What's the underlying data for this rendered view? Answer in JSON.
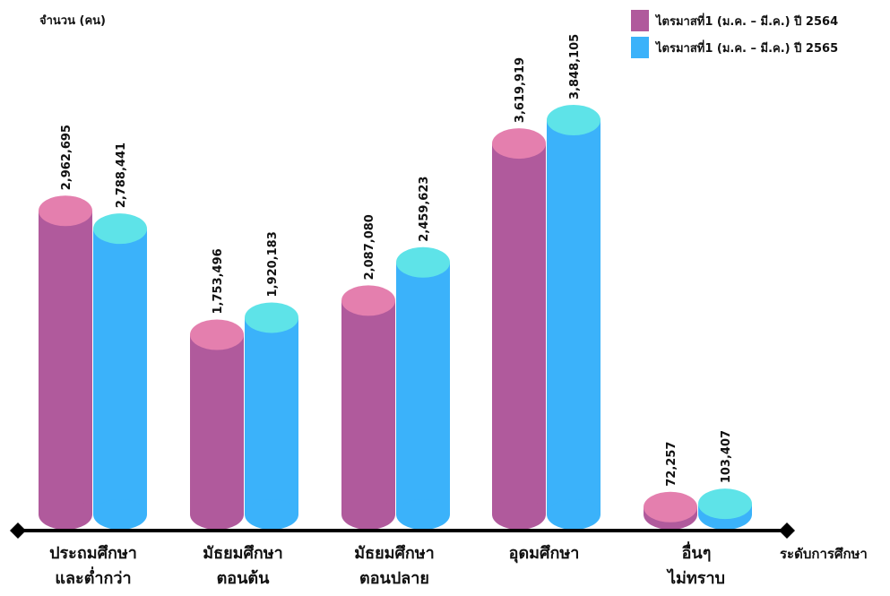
{
  "chart_data": {
    "type": "bar",
    "ylabel": "จำนวน (คน)",
    "xlabel": "ระดับการศึกษา",
    "categories": [
      [
        "ประถมศึกษา",
        "และต่ำกว่า"
      ],
      [
        "มัธยมศึกษา",
        "ตอนต้น"
      ],
      [
        "มัธยมศึกษา",
        "ตอนปลาย"
      ],
      [
        "อุดมศึกษา"
      ],
      [
        "อื่นๆ",
        "ไม่ทราบ"
      ]
    ],
    "series": [
      {
        "name": "ไตรมาสที่1 (ม.ค. – มี.ค.) ปี 2564",
        "color": "#B05A9C",
        "top_color": "#E47FAE",
        "values": [
          2962695,
          1753496,
          2087080,
          3619919,
          72257
        ],
        "value_labels": [
          "2,962,695",
          "1,753,496",
          "2,087,080",
          "3,619,919",
          "72,257"
        ]
      },
      {
        "name": "ไตรมาสที่1 (ม.ค. – มี.ค.) ปี 2565",
        "color": "#3BB2FA",
        "top_color": "#5EE3E8",
        "values": [
          2788441,
          1920183,
          2459623,
          3848105,
          103407
        ],
        "value_labels": [
          "2,788,441",
          "1,920,183",
          "2,459,623",
          "3,848,105",
          "103,407"
        ]
      }
    ],
    "legend_position": "top-right",
    "grid": false,
    "style": "3d-cylinder"
  }
}
